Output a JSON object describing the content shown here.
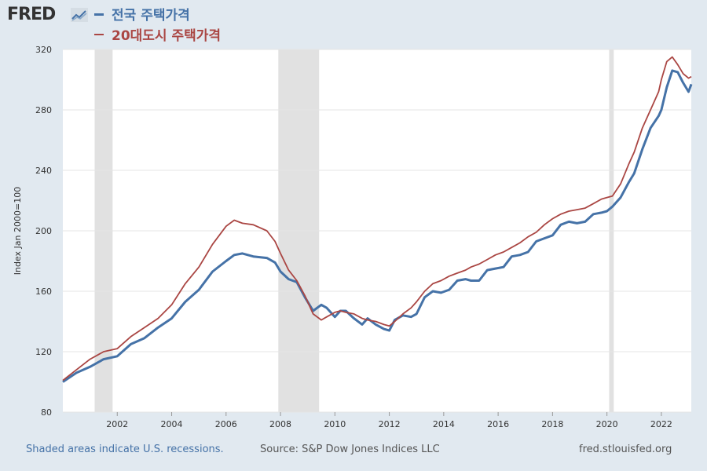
{
  "header": {
    "logo_text": "FRED"
  },
  "footer": {
    "note": "Shaded areas indicate U.S. recessions.",
    "source": "Source: S&P Dow Jones Indices LLC",
    "site": "fred.stlouisfed.org"
  },
  "colors": {
    "series1": "#4572a7",
    "series2": "#aa4643",
    "recession": "#e1e1e1",
    "background": "#e1e9f0"
  },
  "chart_data": {
    "type": "line",
    "title": "",
    "xlabel": "",
    "ylabel": "Index Jan 2000=100",
    "xlim": [
      2000.0,
      2023.1
    ],
    "ylim": [
      80,
      320
    ],
    "yticks": [
      80,
      120,
      160,
      200,
      240,
      280,
      320
    ],
    "xticks": [
      2002,
      2004,
      2006,
      2008,
      2010,
      2012,
      2014,
      2016,
      2018,
      2020,
      2022
    ],
    "recessions": [
      [
        2001.17,
        2001.83
      ],
      [
        2007.92,
        2009.42
      ],
      [
        2020.08,
        2020.25
      ]
    ],
    "legend_position": "top-left",
    "series": [
      {
        "name": "전국 주택가격",
        "x": [
          2000.0,
          2000.5,
          2001.0,
          2001.5,
          2002.0,
          2002.5,
          2003.0,
          2003.5,
          2004.0,
          2004.5,
          2005.0,
          2005.5,
          2006.0,
          2006.3,
          2006.6,
          2007.0,
          2007.5,
          2007.8,
          2008.0,
          2008.3,
          2008.6,
          2008.9,
          2009.2,
          2009.5,
          2009.7,
          2010.0,
          2010.2,
          2010.4,
          2010.7,
          2011.0,
          2011.2,
          2011.5,
          2011.8,
          2012.0,
          2012.2,
          2012.5,
          2012.8,
          2013.0,
          2013.3,
          2013.6,
          2013.9,
          2014.2,
          2014.5,
          2014.8,
          2015.0,
          2015.3,
          2015.6,
          2015.9,
          2016.2,
          2016.5,
          2016.8,
          2017.1,
          2017.4,
          2017.7,
          2018.0,
          2018.3,
          2018.6,
          2018.9,
          2019.2,
          2019.5,
          2019.8,
          2020.0,
          2020.2,
          2020.5,
          2020.8,
          2021.0,
          2021.3,
          2021.6,
          2021.9,
          2022.0,
          2022.2,
          2022.4,
          2022.6,
          2022.8,
          2023.0,
          2023.1
        ],
        "values": [
          100,
          106,
          110,
          115,
          117,
          125,
          129,
          136,
          142,
          153,
          161,
          173,
          180,
          184,
          185,
          183,
          182,
          179,
          173,
          168,
          166,
          156,
          147,
          151,
          149,
          143,
          147,
          147,
          142,
          138,
          142,
          138,
          135,
          134,
          141,
          144,
          143,
          145,
          156,
          160,
          159,
          161,
          167,
          168,
          167,
          167,
          174,
          175,
          176,
          183,
          184,
          186,
          193,
          195,
          197,
          204,
          206,
          205,
          206,
          211,
          212,
          213,
          216,
          222,
          232,
          238,
          254,
          268,
          276,
          280,
          295,
          306,
          305,
          298,
          292,
          297
        ]
      },
      {
        "name": "20대도시 주택가격",
        "x": [
          2000.0,
          2000.5,
          2001.0,
          2001.5,
          2002.0,
          2002.5,
          2003.0,
          2003.5,
          2004.0,
          2004.5,
          2005.0,
          2005.5,
          2006.0,
          2006.3,
          2006.6,
          2007.0,
          2007.5,
          2007.8,
          2008.0,
          2008.3,
          2008.6,
          2008.9,
          2009.2,
          2009.5,
          2009.7,
          2010.0,
          2010.2,
          2010.4,
          2010.7,
          2011.0,
          2011.2,
          2011.5,
          2011.8,
          2012.0,
          2012.2,
          2012.5,
          2012.8,
          2013.0,
          2013.3,
          2013.6,
          2013.9,
          2014.2,
          2014.5,
          2014.8,
          2015.0,
          2015.3,
          2015.6,
          2015.9,
          2016.2,
          2016.5,
          2016.8,
          2017.1,
          2017.4,
          2017.7,
          2018.0,
          2018.3,
          2018.6,
          2018.9,
          2019.2,
          2019.5,
          2019.8,
          2020.0,
          2020.2,
          2020.5,
          2020.8,
          2021.0,
          2021.3,
          2021.6,
          2021.9,
          2022.0,
          2022.2,
          2022.4,
          2022.6,
          2022.8,
          2023.0,
          2023.1
        ],
        "values": [
          101,
          108,
          115,
          120,
          122,
          130,
          136,
          142,
          151,
          165,
          176,
          191,
          203,
          207,
          205,
          204,
          200,
          193,
          185,
          174,
          167,
          157,
          145,
          141,
          143,
          146,
          147,
          146,
          145,
          142,
          141,
          140,
          138,
          137,
          140,
          145,
          149,
          153,
          160,
          165,
          167,
          170,
          172,
          174,
          176,
          178,
          181,
          184,
          186,
          189,
          192,
          196,
          199,
          204,
          208,
          211,
          213,
          214,
          215,
          218,
          221,
          222,
          223,
          231,
          244,
          252,
          268,
          280,
          292,
          300,
          312,
          315,
          310,
          304,
          301,
          302
        ]
      }
    ]
  }
}
